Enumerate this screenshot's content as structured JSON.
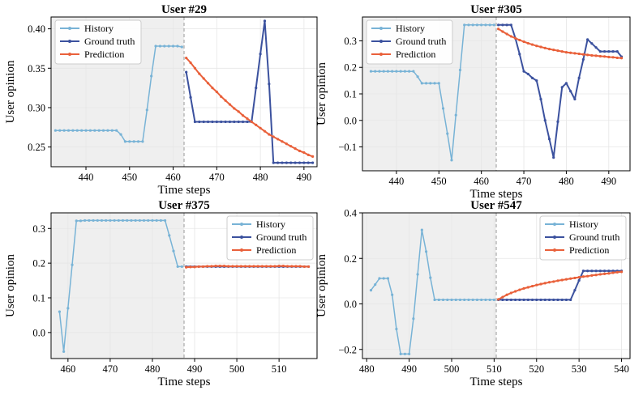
{
  "colors": {
    "history": "#78b3d6",
    "ground_truth": "#3b519e",
    "prediction": "#e9603a",
    "shade": "#efefef",
    "grid": "#e6e6e6",
    "divider": "#999999"
  },
  "chart_data": [
    {
      "type": "line",
      "title": "User #29",
      "xlabel": "Time steps",
      "ylabel": "User opinion",
      "xlim": [
        432,
        493
      ],
      "ylim": [
        0.225,
        0.415
      ],
      "xticks": [
        440,
        450,
        460,
        470,
        480,
        490
      ],
      "yticks": [
        0.25,
        0.3,
        0.35,
        0.4
      ],
      "ytick_labels": [
        "0.25",
        "0.30",
        "0.35",
        "0.40"
      ],
      "split_x": 462.5,
      "legend": {
        "position": "top-left",
        "labels": [
          "History",
          "Ground truth",
          "Prediction"
        ]
      },
      "series": [
        {
          "name": "History",
          "x": [
            433,
            434,
            435,
            436,
            437,
            438,
            439,
            440,
            441,
            442,
            443,
            444,
            445,
            446,
            447,
            448,
            449,
            450,
            451,
            452,
            453,
            454,
            455,
            456,
            457,
            458,
            459,
            460,
            461,
            462
          ],
          "values": [
            0.271,
            0.271,
            0.271,
            0.271,
            0.271,
            0.271,
            0.271,
            0.271,
            0.271,
            0.271,
            0.271,
            0.271,
            0.271,
            0.271,
            0.271,
            0.266,
            0.257,
            0.257,
            0.257,
            0.257,
            0.257,
            0.297,
            0.34,
            0.378,
            0.378,
            0.378,
            0.378,
            0.378,
            0.378,
            0.377
          ]
        },
        {
          "name": "Ground truth",
          "x": [
            463,
            464,
            465,
            466,
            467,
            468,
            469,
            470,
            471,
            472,
            473,
            474,
            475,
            476,
            477,
            478,
            479,
            480,
            481,
            482,
            483,
            484,
            485,
            486,
            487,
            488,
            489,
            490,
            491,
            492
          ],
          "values": [
            0.345,
            0.313,
            0.282,
            0.282,
            0.282,
            0.282,
            0.282,
            0.282,
            0.282,
            0.282,
            0.282,
            0.282,
            0.282,
            0.282,
            0.282,
            0.282,
            0.325,
            0.368,
            0.41,
            0.33,
            0.23,
            0.23,
            0.23,
            0.23,
            0.23,
            0.23,
            0.23,
            0.23,
            0.23,
            0.23
          ]
        },
        {
          "name": "Prediction",
          "x": [
            463,
            464,
            465,
            466,
            467,
            468,
            469,
            470,
            471,
            472,
            473,
            474,
            475,
            476,
            477,
            478,
            479,
            480,
            481,
            482,
            483,
            484,
            485,
            486,
            487,
            488,
            489,
            490,
            491,
            492
          ],
          "values": [
            0.363,
            0.357,
            0.35,
            0.343,
            0.337,
            0.331,
            0.325,
            0.32,
            0.314,
            0.309,
            0.304,
            0.299,
            0.295,
            0.29,
            0.286,
            0.282,
            0.278,
            0.274,
            0.27,
            0.266,
            0.263,
            0.26,
            0.257,
            0.254,
            0.251,
            0.248,
            0.245,
            0.243,
            0.24,
            0.238
          ]
        }
      ]
    },
    {
      "type": "line",
      "title": "User #305",
      "xlabel": "Time steps",
      "ylabel": "User opinion",
      "xlim": [
        432,
        495
      ],
      "ylim": [
        -0.19,
        0.39
      ],
      "xticks": [
        440,
        450,
        460,
        470,
        480,
        490
      ],
      "yticks": [
        -0.1,
        0.0,
        0.1,
        0.2,
        0.3
      ],
      "ytick_labels": [
        "−0.1",
        "0.0",
        "0.1",
        "0.2",
        "0.3"
      ],
      "split_x": 463.5,
      "legend": {
        "position": "top-left",
        "labels": [
          "History",
          "Ground truth",
          "Prediction"
        ]
      },
      "series": [
        {
          "name": "History",
          "x": [
            434,
            435,
            436,
            437,
            438,
            439,
            440,
            441,
            442,
            443,
            444,
            445,
            446,
            447,
            448,
            449,
            450,
            451,
            452,
            453,
            454,
            455,
            456,
            457,
            458,
            459,
            460,
            461,
            462,
            463
          ],
          "values": [
            0.185,
            0.185,
            0.185,
            0.185,
            0.185,
            0.185,
            0.185,
            0.185,
            0.185,
            0.185,
            0.185,
            0.165,
            0.14,
            0.14,
            0.14,
            0.14,
            0.14,
            0.045,
            -0.05,
            -0.15,
            0.02,
            0.19,
            0.36,
            0.36,
            0.36,
            0.36,
            0.36,
            0.36,
            0.36,
            0.36
          ]
        },
        {
          "name": "Ground truth",
          "x": [
            464,
            465,
            466,
            467,
            468,
            469,
            470,
            471,
            472,
            473,
            474,
            475,
            476,
            477,
            478,
            479,
            480,
            481,
            482,
            483,
            484,
            485,
            486,
            487,
            488,
            489,
            490,
            491,
            492,
            493
          ],
          "values": [
            0.36,
            0.36,
            0.36,
            0.36,
            0.31,
            0.25,
            0.185,
            0.175,
            0.16,
            0.15,
            0.08,
            0.0,
            -0.07,
            -0.14,
            -0.005,
            0.125,
            0.14,
            0.11,
            0.08,
            0.16,
            0.23,
            0.305,
            0.29,
            0.275,
            0.26,
            0.26,
            0.26,
            0.26,
            0.26,
            0.24
          ]
        },
        {
          "name": "Prediction",
          "x": [
            464,
            465,
            466,
            467,
            468,
            469,
            470,
            471,
            472,
            473,
            474,
            475,
            476,
            477,
            478,
            479,
            480,
            481,
            482,
            483,
            484,
            485,
            486,
            487,
            488,
            489,
            490,
            491,
            492,
            493
          ],
          "values": [
            0.345,
            0.335,
            0.326,
            0.317,
            0.31,
            0.303,
            0.297,
            0.291,
            0.286,
            0.281,
            0.277,
            0.273,
            0.269,
            0.266,
            0.263,
            0.26,
            0.257,
            0.255,
            0.253,
            0.251,
            0.249,
            0.247,
            0.245,
            0.244,
            0.242,
            0.241,
            0.239,
            0.238,
            0.236,
            0.235
          ]
        }
      ]
    },
    {
      "type": "line",
      "title": "User #375",
      "xlabel": "Time steps",
      "ylabel": "User opinion",
      "xlim": [
        456,
        519
      ],
      "ylim": [
        -0.075,
        0.345
      ],
      "xticks": [
        460,
        470,
        480,
        490,
        500,
        510
      ],
      "yticks": [
        0.0,
        0.1,
        0.2,
        0.3
      ],
      "ytick_labels": [
        "0.0",
        "0.1",
        "0.2",
        "0.3"
      ],
      "split_x": 487.5,
      "legend": {
        "position": "top-right",
        "labels": [
          "History",
          "Ground truth",
          "Prediction"
        ]
      },
      "series": [
        {
          "name": "History",
          "x": [
            458,
            459,
            460,
            461,
            462,
            463,
            464,
            465,
            466,
            467,
            468,
            469,
            470,
            471,
            472,
            473,
            474,
            475,
            476,
            477,
            478,
            479,
            480,
            481,
            482,
            483,
            484,
            485,
            486,
            487
          ],
          "values": [
            0.06,
            -0.055,
            0.07,
            0.195,
            0.322,
            0.322,
            0.323,
            0.323,
            0.323,
            0.323,
            0.323,
            0.323,
            0.323,
            0.323,
            0.323,
            0.323,
            0.323,
            0.323,
            0.323,
            0.323,
            0.323,
            0.323,
            0.323,
            0.323,
            0.323,
            0.323,
            0.28,
            0.235,
            0.19,
            0.19
          ]
        },
        {
          "name": "Ground truth",
          "x": [
            488,
            489,
            490,
            491,
            492,
            493,
            494,
            495,
            496,
            497,
            498,
            499,
            500,
            501,
            502,
            503,
            504,
            505,
            506,
            507,
            508,
            509,
            510,
            511,
            512,
            513,
            514,
            515,
            516,
            517
          ],
          "values": [
            0.19,
            0.19,
            0.19,
            0.19,
            0.19,
            0.19,
            0.19,
            0.19,
            0.19,
            0.19,
            0.19,
            0.19,
            0.19,
            0.19,
            0.19,
            0.19,
            0.19,
            0.19,
            0.19,
            0.19,
            0.19,
            0.19,
            0.19,
            0.19,
            0.19,
            0.19,
            0.19,
            0.19,
            0.19,
            0.19
          ]
        },
        {
          "name": "Prediction",
          "x": [
            488,
            489,
            490,
            491,
            492,
            493,
            494,
            495,
            496,
            497,
            498,
            499,
            500,
            501,
            502,
            503,
            504,
            505,
            506,
            507,
            508,
            509,
            510,
            511,
            512,
            513,
            514,
            515,
            516,
            517
          ],
          "values": [
            0.188,
            0.189,
            0.189,
            0.19,
            0.19,
            0.191,
            0.191,
            0.192,
            0.192,
            0.192,
            0.191,
            0.191,
            0.191,
            0.191,
            0.191,
            0.191,
            0.191,
            0.191,
            0.191,
            0.191,
            0.191,
            0.191,
            0.192,
            0.192,
            0.191,
            0.191,
            0.191,
            0.191,
            0.19,
            0.19
          ]
        }
      ]
    },
    {
      "type": "line",
      "title": "User #547",
      "xlabel": "Time steps",
      "ylabel": "User opinion",
      "xlim": [
        479,
        542
      ],
      "ylim": [
        -0.24,
        0.4
      ],
      "xticks": [
        480,
        490,
        500,
        510,
        520,
        530,
        540
      ],
      "yticks": [
        -0.2,
        0.0,
        0.2,
        0.4
      ],
      "ytick_labels": [
        "−0.2",
        "0.0",
        "0.2",
        "0.4"
      ],
      "split_x": 510.5,
      "legend": {
        "position": "top-right",
        "labels": [
          "History",
          "Ground truth",
          "Prediction"
        ]
      },
      "series": [
        {
          "name": "History",
          "x": [
            481,
            482,
            483,
            484,
            485,
            486,
            487,
            488,
            489,
            490,
            491,
            492,
            493,
            494,
            495,
            496,
            497,
            498,
            499,
            500,
            501,
            502,
            503,
            504,
            505,
            506,
            507,
            508,
            509,
            510
          ],
          "values": [
            0.06,
            0.085,
            0.112,
            0.112,
            0.112,
            0.04,
            -0.11,
            -0.22,
            -0.22,
            -0.22,
            -0.065,
            0.13,
            0.325,
            0.23,
            0.115,
            0.018,
            0.018,
            0.018,
            0.018,
            0.018,
            0.018,
            0.018,
            0.018,
            0.018,
            0.018,
            0.018,
            0.018,
            0.018,
            0.018,
            0.018
          ]
        },
        {
          "name": "Ground truth",
          "x": [
            511,
            512,
            513,
            514,
            515,
            516,
            517,
            518,
            519,
            520,
            521,
            522,
            523,
            524,
            525,
            526,
            527,
            528,
            529,
            530,
            531,
            532,
            533,
            534,
            535,
            536,
            537,
            538,
            539,
            540
          ],
          "values": [
            0.018,
            0.018,
            0.018,
            0.018,
            0.018,
            0.018,
            0.018,
            0.018,
            0.018,
            0.018,
            0.018,
            0.018,
            0.018,
            0.018,
            0.018,
            0.018,
            0.018,
            0.018,
            0.06,
            0.103,
            0.145,
            0.145,
            0.145,
            0.145,
            0.145,
            0.145,
            0.145,
            0.145,
            0.145,
            0.145
          ]
        },
        {
          "name": "Prediction",
          "x": [
            511,
            512,
            513,
            514,
            515,
            516,
            517,
            518,
            519,
            520,
            521,
            522,
            523,
            524,
            525,
            526,
            527,
            528,
            529,
            530,
            531,
            532,
            533,
            534,
            535,
            536,
            537,
            538,
            539,
            540
          ],
          "values": [
            0.02,
            0.03,
            0.04,
            0.048,
            0.055,
            0.062,
            0.068,
            0.073,
            0.078,
            0.083,
            0.087,
            0.091,
            0.095,
            0.098,
            0.102,
            0.105,
            0.108,
            0.111,
            0.114,
            0.117,
            0.12,
            0.122,
            0.125,
            0.127,
            0.13,
            0.132,
            0.134,
            0.137,
            0.139,
            0.141
          ]
        }
      ]
    }
  ]
}
